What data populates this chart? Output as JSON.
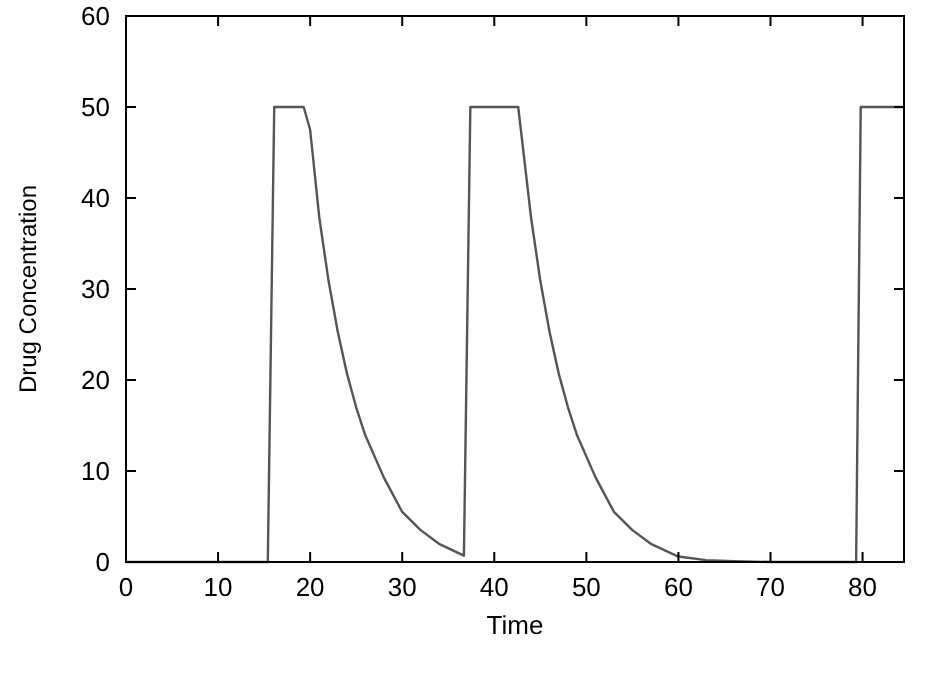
{
  "chart_data": {
    "type": "line",
    "xlabel": "Time",
    "ylabel": "Drug Concentration",
    "xlim": [
      0,
      84.5
    ],
    "ylim": [
      0,
      60
    ],
    "xticks": [
      0,
      10,
      20,
      30,
      40,
      50,
      60,
      70,
      80
    ],
    "yticks": [
      0,
      10,
      20,
      30,
      40,
      50,
      60
    ],
    "line_style": "solid",
    "series": [
      {
        "color": "#555555",
        "x": [
          0,
          15.4,
          16.1,
          19.3,
          20,
          21,
          22,
          23,
          24,
          25,
          26,
          28,
          30,
          32,
          34,
          36.7,
          37.4,
          42.6,
          44,
          45,
          46,
          47,
          48,
          49,
          51,
          53,
          55,
          57,
          60,
          63,
          66,
          70,
          79.3,
          79.8,
          84.5
        ],
        "values": [
          0,
          0,
          50,
          50,
          47.5,
          37.8,
          30.9,
          25.3,
          20.7,
          17,
          13.9,
          9.3,
          5.5,
          3.5,
          2,
          0.7,
          50,
          50,
          37.8,
          30.9,
          25.3,
          20.7,
          17,
          13.9,
          9.3,
          5.5,
          3.5,
          2,
          0.6,
          0.2,
          0.1,
          0,
          0,
          50,
          50
        ]
      }
    ]
  }
}
